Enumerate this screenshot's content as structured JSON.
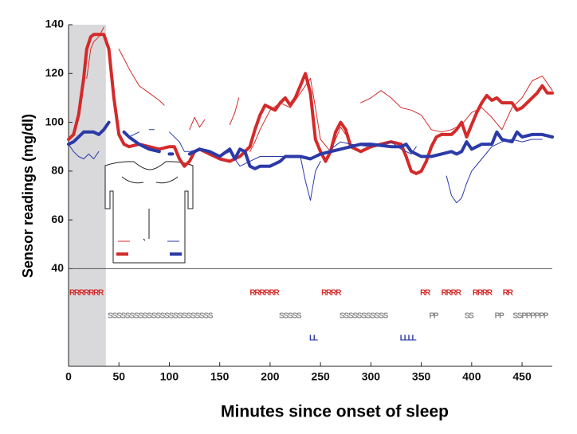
{
  "chart_data": {
    "type": "line",
    "xlabel": "Minutes since onset of sleep",
    "ylabel": "Sensor readings (mg/dl)",
    "xlim": [
      0,
      480
    ],
    "xticks": [
      0,
      50,
      100,
      150,
      200,
      250,
      300,
      350,
      400,
      450
    ],
    "ylim": [
      0,
      140
    ],
    "yticks": [
      40,
      60,
      80,
      100,
      120,
      140
    ],
    "shaded_xlim": [
      0,
      37
    ],
    "series": [
      {
        "color": "#d42a2a",
        "width": 1,
        "x": [
          18,
          22,
          25,
          30,
          35,
          40,
          45,
          50,
          55,
          60,
          70,
          80,
          90,
          95,
          100,
          105,
          110,
          120,
          125,
          130,
          135,
          140,
          160,
          165,
          169,
          175,
          180,
          185,
          190,
          200,
          210,
          220,
          230,
          240,
          245,
          250,
          260,
          270,
          280,
          285,
          290,
          300,
          310,
          320,
          330,
          340,
          350,
          355,
          360,
          370,
          380,
          390,
          400,
          410,
          420,
          430,
          440,
          450,
          460,
          470,
          480
        ],
        "values": [
          118,
          130,
          133,
          135,
          139,
          null,
          null,
          130,
          126,
          122,
          115,
          112,
          109,
          107,
          null,
          103,
          null,
          97,
          102,
          98,
          101,
          null,
          99,
          104,
          110,
          null,
          88,
          92,
          97,
          105,
          108,
          106,
          112,
          118,
          106,
          93,
          88,
          98,
          92,
          null,
          108,
          110,
          113,
          110,
          106,
          105,
          103,
          100,
          97,
          96,
          97,
          99,
          104,
          106,
          102,
          97,
          106,
          110,
          117,
          119,
          113
        ]
      },
      {
        "color": "#d42a2a",
        "width": 4,
        "x": [
          0,
          5,
          10,
          15,
          18,
          22,
          25,
          30,
          35,
          40,
          45,
          50,
          55,
          60,
          70,
          80,
          90,
          100,
          105,
          110,
          115,
          120,
          125,
          130,
          140,
          150,
          160,
          170,
          180,
          185,
          190,
          195,
          200,
          205,
          210,
          215,
          220,
          225,
          230,
          235,
          240,
          245,
          250,
          255,
          260,
          265,
          270,
          275,
          280,
          290,
          300,
          310,
          320,
          330,
          335,
          340,
          345,
          350,
          355,
          360,
          365,
          370,
          380,
          385,
          390,
          395,
          400,
          405,
          410,
          415,
          420,
          425,
          430,
          440,
          445,
          450,
          460,
          465,
          470,
          475,
          480
        ],
        "values": [
          93,
          95,
          103,
          118,
          130,
          135,
          136,
          136,
          136,
          130,
          110,
          95,
          91,
          90,
          91,
          90,
          89,
          90,
          90,
          85,
          82,
          84,
          88,
          89,
          87,
          85,
          84,
          86,
          90,
          97,
          103,
          107,
          106,
          105,
          108,
          110,
          107,
          110,
          115,
          120,
          112,
          93,
          88,
          84,
          88,
          96,
          100,
          97,
          90,
          88,
          90,
          91,
          92,
          91,
          86,
          80,
          79,
          80,
          84,
          90,
          94,
          95,
          95,
          97,
          100,
          94,
          99,
          104,
          108,
          111,
          109,
          110,
          108,
          108,
          105,
          106,
          110,
          112,
          115,
          112,
          112
        ]
      },
      {
        "color": "#2b3aa8",
        "width": 1,
        "x": [
          0,
          5,
          10,
          15,
          20,
          25,
          30,
          35,
          60,
          70,
          75,
          80,
          85,
          95,
          100,
          110,
          115,
          120,
          130,
          140,
          150,
          160,
          170,
          180,
          190,
          200,
          210,
          220,
          230,
          235,
          240,
          245,
          250,
          255,
          260,
          270,
          280,
          300,
          320,
          330,
          340,
          345,
          350,
          375,
          380,
          385,
          390,
          395,
          400,
          410,
          420,
          430,
          440,
          450,
          460,
          470
        ],
        "values": [
          91,
          88,
          86,
          85,
          87,
          85,
          88,
          null,
          94,
          96,
          null,
          97,
          97,
          null,
          96,
          92,
          88,
          88,
          89,
          88,
          86,
          88,
          82,
          84,
          86,
          86,
          86,
          86,
          86,
          76,
          68,
          80,
          84,
          null,
          89,
          92,
          91,
          90,
          92,
          89,
          87,
          90,
          null,
          78,
          70,
          67,
          69,
          75,
          80,
          85,
          90,
          92,
          93,
          92,
          93,
          93
        ]
      },
      {
        "color": "#2b3aa8",
        "width": 4,
        "x": [
          0,
          5,
          10,
          15,
          25,
          30,
          35,
          40,
          45,
          55,
          60,
          70,
          80,
          90,
          95,
          100,
          103,
          105,
          120,
          130,
          140,
          150,
          160,
          165,
          170,
          175,
          180,
          185,
          190,
          200,
          210,
          215,
          230,
          240,
          245,
          250,
          260,
          270,
          280,
          290,
          300,
          320,
          330,
          335,
          340,
          350,
          360,
          370,
          380,
          385,
          390,
          395,
          400,
          410,
          420,
          425,
          430,
          440,
          445,
          450,
          460,
          470,
          480
        ],
        "values": [
          91,
          92,
          94,
          96,
          96,
          95,
          97,
          100,
          null,
          96,
          94,
          91,
          89,
          88,
          null,
          87,
          87,
          null,
          87,
          89,
          88,
          86,
          89,
          85,
          89,
          88,
          82,
          81,
          82,
          82,
          84,
          86,
          86,
          85,
          86,
          87,
          88,
          89,
          90,
          91,
          91,
          90,
          90,
          91,
          88,
          86,
          86,
          87,
          88,
          87,
          88,
          92,
          89,
          91,
          91,
          96,
          93,
          92,
          96,
          94,
          95,
          95,
          94
        ]
      }
    ],
    "events": [
      {
        "color": "#d42a2a",
        "items": [
          {
            "x": 0,
            "text": "RRRRRRR"
          },
          {
            "x": 179,
            "text": "RRRRRR"
          },
          {
            "x": 250,
            "text": "RRRR"
          },
          {
            "x": 348,
            "text": "RR"
          },
          {
            "x": 369,
            "text": "RRRR"
          },
          {
            "x": 400,
            "text": "RRRR"
          },
          {
            "x": 430,
            "text": "RR"
          }
        ]
      },
      {
        "color": "#888888",
        "items": [
          {
            "x": 38,
            "text": "SSSSSSSSSSSSSSSSSSSSSSSS"
          },
          {
            "x": 208,
            "text": "SSSSS"
          },
          {
            "x": 268,
            "text": "SSSSSSSSSSS"
          },
          {
            "x": 357,
            "text": "PP"
          },
          {
            "x": 392,
            "text": "SS"
          },
          {
            "x": 422,
            "text": "PP"
          },
          {
            "x": 440,
            "text": "SSPPPPPP"
          }
        ]
      },
      {
        "color": "#2b3aa8",
        "items": [
          {
            "x": 238,
            "text": "LL"
          },
          {
            "x": 328,
            "text": "LLLL"
          }
        ]
      }
    ]
  }
}
